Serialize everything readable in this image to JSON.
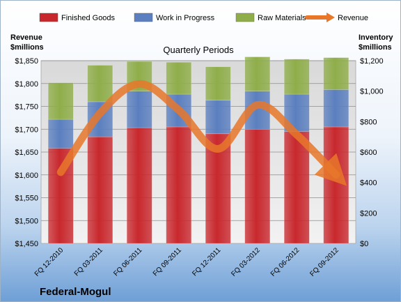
{
  "chart_data": {
    "type": "bar",
    "stacked": true,
    "subtitle": "Quarterly Periods",
    "company": "Federal-Mogul",
    "left_axis_title": [
      "Revenue",
      "$millions"
    ],
    "right_axis_title": [
      "Inventory",
      "$millions"
    ],
    "categories": [
      "FQ 12-2010",
      "FQ 03-2011",
      "FQ 06-2011",
      "FQ 09-2011",
      "FQ 12-2011",
      "FQ 03-2012",
      "FQ 06-2012",
      "FQ 09-2012"
    ],
    "series": [
      {
        "name": "Finished Goods",
        "color": "#c8282d",
        "axis": "right",
        "values": [
          625,
          700,
          760,
          765,
          720,
          750,
          735,
          765
        ]
      },
      {
        "name": "Work in Progress",
        "color": "#5b7fbf",
        "axis": "right",
        "values": [
          190,
          230,
          240,
          215,
          220,
          250,
          245,
          245
        ]
      },
      {
        "name": "Raw Materials",
        "color": "#8fae4a",
        "axis": "right",
        "values": [
          240,
          240,
          195,
          210,
          220,
          225,
          230,
          210
        ]
      }
    ],
    "revenue_line": {
      "name": "Revenue",
      "color": "#e8772a",
      "axis": "left",
      "values": [
        1606,
        1735,
        1799,
        1742,
        1657,
        1753,
        1688,
        1600
      ]
    },
    "y_left": {
      "min": 1450,
      "max": 1850,
      "step": 50,
      "prefix": "$"
    },
    "y_right": {
      "min": 0,
      "max": 1200,
      "step": 200,
      "prefix": "$"
    },
    "legend_position": "top",
    "grid": true
  }
}
